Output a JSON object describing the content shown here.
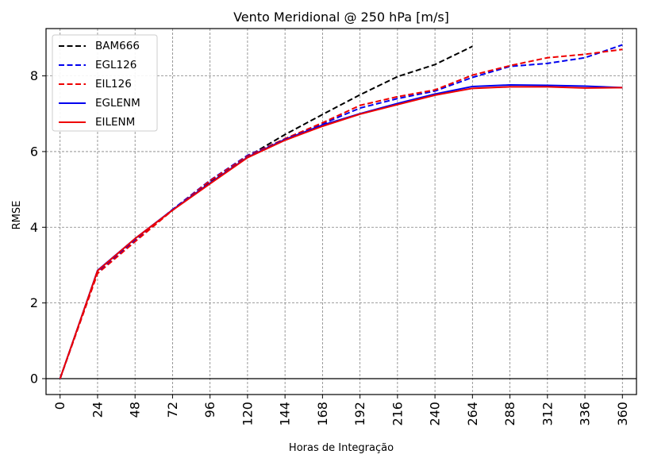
{
  "chart_data": {
    "type": "line",
    "title": "Vento Meridional @ 250 hPa [m/s]",
    "xlabel": "Horas de Integração",
    "ylabel": "RMSE",
    "xlim": [
      -9,
      369
    ],
    "ylim": [
      -0.42,
      9.25
    ],
    "xticks": [
      0,
      24,
      48,
      72,
      96,
      120,
      144,
      168,
      192,
      216,
      240,
      264,
      288,
      312,
      336,
      360
    ],
    "yticks": [
      0,
      2,
      4,
      6,
      8
    ],
    "grid": true,
    "legend_position": "top-left",
    "series": [
      {
        "name": "BAM666",
        "color": "#000000",
        "dash": "dashed",
        "x": [
          0,
          24,
          48,
          72,
          96,
          120,
          144,
          168,
          192,
          216,
          240,
          264
        ],
        "y": [
          0.0,
          2.83,
          3.68,
          4.45,
          5.2,
          5.87,
          6.45,
          6.98,
          7.5,
          7.98,
          8.3,
          8.78
        ]
      },
      {
        "name": "EGL126",
        "color": "#0000ee",
        "dash": "dashed",
        "x": [
          0,
          24,
          48,
          72,
          96,
          120,
          144,
          168,
          192,
          216,
          240,
          264,
          288,
          312,
          336,
          360
        ],
        "y": [
          0.0,
          2.81,
          3.65,
          4.47,
          5.24,
          5.9,
          6.33,
          6.73,
          7.15,
          7.4,
          7.6,
          7.96,
          8.25,
          8.33,
          8.48,
          8.82
        ]
      },
      {
        "name": "EIL126",
        "color": "#ee0000",
        "dash": "dashed",
        "x": [
          0,
          24,
          48,
          72,
          96,
          120,
          144,
          168,
          192,
          216,
          240,
          264,
          288,
          312,
          336,
          360
        ],
        "y": [
          0.0,
          2.78,
          3.62,
          4.45,
          5.23,
          5.88,
          6.34,
          6.76,
          7.22,
          7.45,
          7.63,
          8.02,
          8.27,
          8.48,
          8.57,
          8.7
        ]
      },
      {
        "name": "EGLENM",
        "color": "#0000ee",
        "dash": "solid",
        "x": [
          0,
          24,
          48,
          72,
          96,
          120,
          144,
          168,
          192,
          216,
          240,
          264,
          288,
          312,
          336,
          360
        ],
        "y": [
          0.0,
          2.86,
          3.7,
          4.46,
          5.17,
          5.85,
          6.32,
          6.7,
          7.0,
          7.27,
          7.52,
          7.72,
          7.76,
          7.75,
          7.73,
          7.69
        ]
      },
      {
        "name": "EILENM",
        "color": "#ee0000",
        "dash": "solid",
        "x": [
          0,
          24,
          48,
          72,
          96,
          120,
          144,
          168,
          192,
          216,
          240,
          264,
          288,
          312,
          336,
          360
        ],
        "y": [
          0.0,
          2.85,
          3.7,
          4.45,
          5.15,
          5.84,
          6.3,
          6.67,
          6.99,
          7.24,
          7.49,
          7.67,
          7.71,
          7.71,
          7.68,
          7.69
        ]
      }
    ]
  }
}
